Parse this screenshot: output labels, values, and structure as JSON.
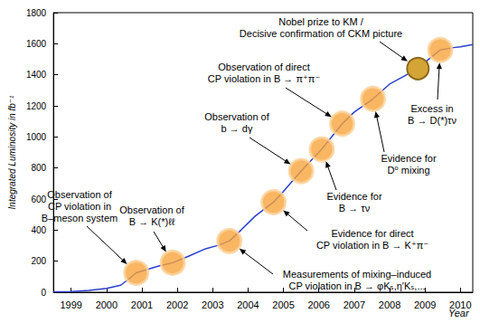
{
  "chart_data": {
    "type": "line",
    "x_label": "Year",
    "y_label": "Integrated Luminosity in fb⁻¹",
    "x": [
      1998.5,
      1999.0,
      1999.5,
      2000.0,
      2000.4,
      2000.6,
      2000.84,
      2001.2,
      2001.5,
      2001.87,
      2002.3,
      2002.8,
      2003.2,
      2003.47,
      2003.8,
      2004.2,
      2004.72,
      2005.0,
      2005.5,
      2006.08,
      2006.66,
      2007.0,
      2007.53,
      2008.0,
      2008.8,
      2009.0,
      2009.43,
      2009.8,
      2010.0,
      2010.35
    ],
    "values": [
      3,
      5,
      12,
      25,
      45,
      80,
      125,
      150,
      170,
      190,
      230,
      280,
      305,
      330,
      400,
      490,
      580,
      650,
      780,
      920,
      1085,
      1160,
      1245,
      1340,
      1440,
      1480,
      1560,
      1575,
      1580,
      1595
    ],
    "color": "#2a3fd0",
    "xlim": [
      1998.5,
      2010.35
    ],
    "xticks": [
      1999,
      2000,
      2001,
      2002,
      2003,
      2004,
      2005,
      2006,
      2007,
      2008,
      2009,
      2010
    ],
    "ylim": [
      0,
      1800
    ],
    "yticks": [
      0,
      200,
      400,
      600,
      800,
      1000,
      1200,
      1400,
      1600,
      1800
    ],
    "grid": false,
    "annotations": [
      {
        "text": "Observation of\nCP violation in\nB–meson system",
        "x": 2000.84,
        "y": 125,
        "color": "#f7a43c",
        "marker": "circle"
      },
      {
        "text": "Observation of\nB → K(*)ℓℓ",
        "x": 2001.87,
        "y": 190,
        "color": "#f7a43c",
        "marker": "circle"
      },
      {
        "text": "Measurements of mixing–induced\nCP violation in B → φKₛ,η′Kₛ,...",
        "x": 2003.47,
        "y": 330,
        "color": "#f7a43c",
        "marker": "circle"
      },
      {
        "text": "Evidence for direct\nCP violation in B → K⁺π⁻",
        "x": 2004.72,
        "y": 580,
        "color": "#f7a43c",
        "marker": "circle"
      },
      {
        "text": "Observation of\nb → dγ",
        "x": 2005.5,
        "y": 780,
        "color": "#f7a43c",
        "marker": "circle"
      },
      {
        "text": "Evidence for\nB → τν",
        "x": 2006.08,
        "y": 920,
        "color": "#f7a43c",
        "marker": "circle"
      },
      {
        "text": "Observation of direct\nCP violation in B → π⁺π⁻",
        "x": 2006.66,
        "y": 1085,
        "color": "#f7a43c",
        "marker": "circle"
      },
      {
        "text": "Evidence for\nD⁰ mixing",
        "x": 2007.53,
        "y": 1245,
        "color": "#f7a43c",
        "marker": "circle"
      },
      {
        "text": "Nobel prize to KM /\nDecisive confirmation of CKM picture",
        "x": 2008.8,
        "y": 1440,
        "color": "#d4a437",
        "marker": "medal"
      },
      {
        "text": "Excess in\nB → D(*)τν",
        "x": 2009.43,
        "y": 1560,
        "color": "#f7a43c",
        "marker": "circle"
      }
    ]
  }
}
